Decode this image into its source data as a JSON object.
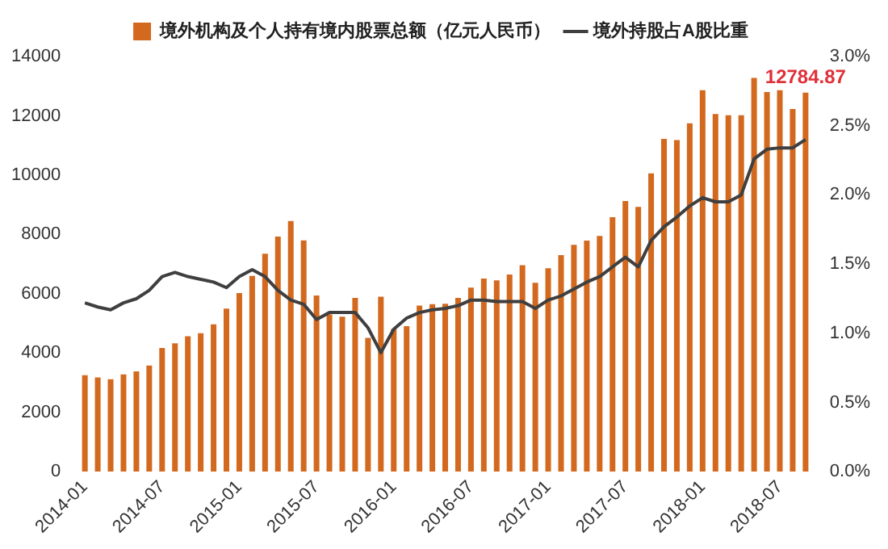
{
  "chart_data": {
    "type": "bar",
    "categories": [
      "2014-01",
      null,
      null,
      null,
      null,
      null,
      "2014-07",
      null,
      null,
      null,
      null,
      null,
      "2015-01",
      null,
      null,
      null,
      null,
      null,
      "2015-07",
      null,
      null,
      null,
      null,
      null,
      "2016-01",
      null,
      null,
      null,
      null,
      null,
      "2016-07",
      null,
      null,
      null,
      null,
      null,
      "2017-01",
      null,
      null,
      null,
      null,
      null,
      "2017-07",
      null,
      null,
      null,
      null,
      null,
      "2018-01",
      null,
      null,
      null,
      null,
      null,
      "2018-07",
      null,
      null
    ],
    "series": [
      {
        "name": "境外机构及个人持有境内股票总额（亿元人民币）",
        "color": "#d2691e",
        "value_labels": [
          null,
          null,
          null,
          null,
          null,
          null,
          null,
          null,
          null,
          null,
          null,
          null,
          null,
          null,
          null,
          null,
          null,
          null,
          null,
          null,
          null,
          null,
          null,
          null,
          null,
          null,
          null,
          null,
          null,
          null,
          null,
          null,
          null,
          null,
          null,
          null,
          null,
          null,
          null,
          null,
          null,
          null,
          null,
          null,
          null,
          null,
          null,
          null,
          null,
          null,
          null,
          null,
          null,
          null,
          null,
          null,
          "12784.87"
        ],
        "values": [
          3250,
          3180,
          3120,
          3280,
          3380,
          3580,
          4170,
          4330,
          4570,
          4670,
          4970,
          5500,
          6020,
          6600,
          7350,
          7930,
          8450,
          7800,
          5940,
          5300,
          5230,
          5860,
          4510,
          5900,
          4810,
          4910,
          5600,
          5650,
          5660,
          5860,
          6210,
          6510,
          6450,
          6650,
          6960,
          6370,
          6860,
          7300,
          7650,
          7790,
          7950,
          8580,
          9130,
          8930,
          10060,
          11220,
          11180,
          11750,
          12860,
          12060,
          12020,
          12020,
          13280,
          12800,
          12860,
          12230,
          12784.87
        ]
      },
      {
        "name": "境外持股占A股比重",
        "type": "line",
        "axis": "y2",
        "color": "#3f3f3f",
        "values": [
          1.22,
          1.19,
          1.17,
          1.22,
          1.25,
          1.31,
          1.41,
          1.44,
          1.41,
          1.39,
          1.37,
          1.33,
          1.41,
          1.46,
          1.41,
          1.31,
          1.24,
          1.21,
          1.1,
          1.15,
          1.15,
          1.15,
          1.04,
          0.86,
          1.03,
          1.11,
          1.15,
          1.17,
          1.18,
          1.2,
          1.24,
          1.24,
          1.23,
          1.23,
          1.23,
          1.18,
          1.24,
          1.27,
          1.32,
          1.37,
          1.41,
          1.48,
          1.55,
          1.48,
          1.67,
          1.77,
          1.84,
          1.92,
          1.98,
          1.95,
          1.95,
          2.0,
          2.26,
          2.33,
          2.34,
          2.34,
          2.4
        ]
      }
    ],
    "ylim": [
      0,
      14000
    ],
    "yticks": [
      0,
      2000,
      4000,
      6000,
      8000,
      10000,
      12000,
      14000
    ],
    "y2lim": [
      0,
      3
    ],
    "y2ticks": [
      {
        "value": 0,
        "label": "0.0%"
      },
      {
        "value": 0.5,
        "label": "0.5%"
      },
      {
        "value": 1,
        "label": "1.0%"
      },
      {
        "value": 1.5,
        "label": "1.5%"
      },
      {
        "value": 2,
        "label": "2.0%"
      },
      {
        "value": 2.5,
        "label": "2.5%"
      },
      {
        "value": 3,
        "label": "3.0%"
      }
    ],
    "grid": false,
    "legend": "top",
    "marker": "none",
    "line_style": "solid"
  }
}
